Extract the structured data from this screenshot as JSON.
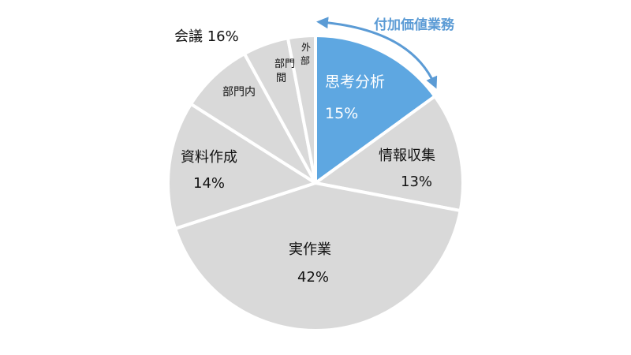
{
  "chart_data": {
    "type": "pie",
    "title": "",
    "slices": [
      {
        "name": "思考分析",
        "value": 15,
        "value_label": "15%",
        "color": "#5ea7e1",
        "highlight": true
      },
      {
        "name": "情報収集",
        "value": 13,
        "value_label": "13%",
        "color": "#d9d9d9"
      },
      {
        "name": "実作業",
        "value": 42,
        "value_label": "42%",
        "color": "#d9d9d9"
      },
      {
        "name": "資料作成",
        "value": 14,
        "value_label": "14%",
        "color": "#d9d9d9"
      },
      {
        "name": "部門内",
        "value": 8,
        "color": "#d9d9d9"
      },
      {
        "name": "部門間",
        "value": 5,
        "color": "#d9d9d9"
      },
      {
        "name": "外部",
        "value": 3,
        "color": "#d9d9d9"
      }
    ],
    "group_label": "会議 16%",
    "annotation": {
      "text": "付加価値業務",
      "color": "#5b9bd5"
    }
  }
}
